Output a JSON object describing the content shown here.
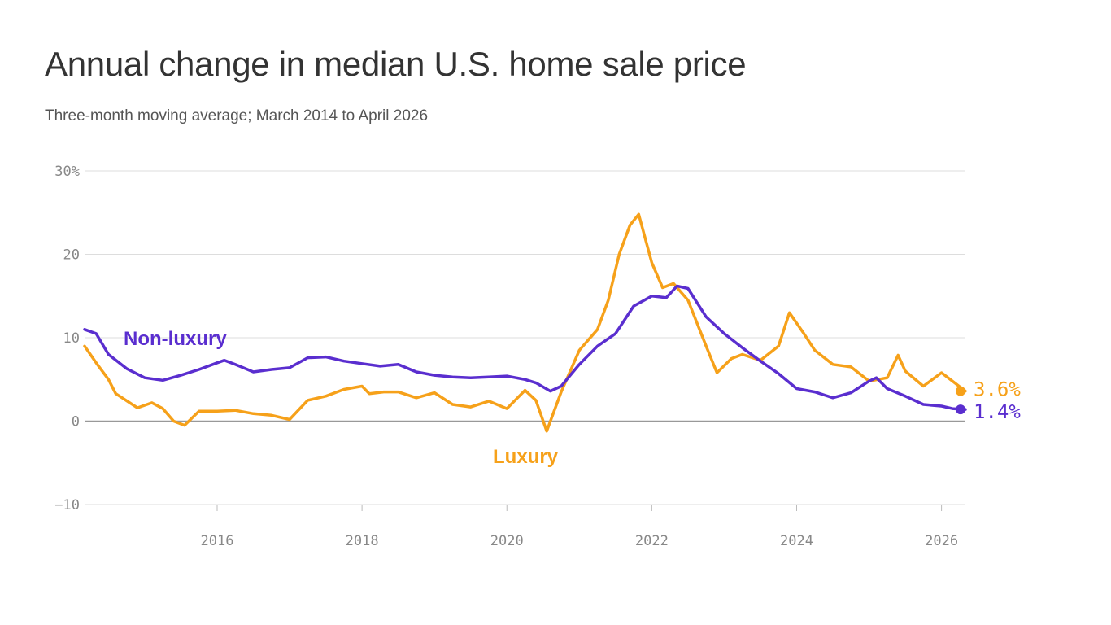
{
  "header": {
    "title": "Annual change in median U.S. home sale price",
    "subtitle": "Three-month moving average; March 2014 to April 2026"
  },
  "chart_data": {
    "type": "line",
    "title": "Annual change in median U.S. home sale price",
    "subtitle": "Three-month moving average; March 2014 to April 2026",
    "xlabel": "",
    "ylabel": "",
    "xlim": [
      2014.17,
      2026.33
    ],
    "ylim": [
      -10,
      30
    ],
    "x_ticks": [
      2016,
      2018,
      2020,
      2022,
      2024,
      2026
    ],
    "y_ticks": [
      30,
      20,
      10,
      0,
      -10
    ],
    "y_tick_labels": [
      "30%",
      "20",
      "10",
      "0",
      "−10"
    ],
    "grid": true,
    "series": [
      {
        "name": "Non-luxury",
        "color": "#5a2ecf",
        "end_label": "1.4%",
        "points": [
          [
            2014.17,
            11.0
          ],
          [
            2014.33,
            10.5
          ],
          [
            2014.5,
            8.0
          ],
          [
            2014.75,
            6.3
          ],
          [
            2015.0,
            5.2
          ],
          [
            2015.25,
            4.9
          ],
          [
            2015.5,
            5.5
          ],
          [
            2015.75,
            6.2
          ],
          [
            2016.0,
            7.0
          ],
          [
            2016.1,
            7.3
          ],
          [
            2016.25,
            6.8
          ],
          [
            2016.5,
            5.9
          ],
          [
            2016.75,
            6.2
          ],
          [
            2017.0,
            6.4
          ],
          [
            2017.25,
            7.6
          ],
          [
            2017.5,
            7.7
          ],
          [
            2017.75,
            7.2
          ],
          [
            2018.0,
            6.9
          ],
          [
            2018.25,
            6.6
          ],
          [
            2018.5,
            6.8
          ],
          [
            2018.75,
            5.9
          ],
          [
            2019.0,
            5.5
          ],
          [
            2019.25,
            5.3
          ],
          [
            2019.5,
            5.2
          ],
          [
            2019.75,
            5.3
          ],
          [
            2020.0,
            5.4
          ],
          [
            2020.25,
            5.0
          ],
          [
            2020.4,
            4.6
          ],
          [
            2020.6,
            3.6
          ],
          [
            2020.75,
            4.2
          ],
          [
            2021.0,
            6.8
          ],
          [
            2021.25,
            9.0
          ],
          [
            2021.5,
            10.5
          ],
          [
            2021.75,
            13.8
          ],
          [
            2022.0,
            15.0
          ],
          [
            2022.2,
            14.8
          ],
          [
            2022.35,
            16.2
          ],
          [
            2022.5,
            15.9
          ],
          [
            2022.75,
            12.5
          ],
          [
            2023.0,
            10.5
          ],
          [
            2023.25,
            8.8
          ],
          [
            2023.5,
            7.2
          ],
          [
            2023.75,
            5.7
          ],
          [
            2024.0,
            3.9
          ],
          [
            2024.25,
            3.5
          ],
          [
            2024.5,
            2.8
          ],
          [
            2024.75,
            3.4
          ],
          [
            2025.0,
            4.8
          ],
          [
            2025.1,
            5.2
          ],
          [
            2025.25,
            3.9
          ],
          [
            2025.5,
            3.0
          ],
          [
            2025.75,
            2.0
          ],
          [
            2026.0,
            1.8
          ],
          [
            2026.15,
            1.5
          ],
          [
            2026.33,
            1.4
          ]
        ]
      },
      {
        "name": "Luxury",
        "color": "#f6a11a",
        "end_label": "3.6%",
        "points": [
          [
            2014.17,
            9.0
          ],
          [
            2014.33,
            7.0
          ],
          [
            2014.5,
            5.0
          ],
          [
            2014.6,
            3.3
          ],
          [
            2014.9,
            1.6
          ],
          [
            2015.1,
            2.2
          ],
          [
            2015.25,
            1.5
          ],
          [
            2015.4,
            0.0
          ],
          [
            2015.55,
            -0.5
          ],
          [
            2015.75,
            1.2
          ],
          [
            2016.0,
            1.2
          ],
          [
            2016.25,
            1.3
          ],
          [
            2016.5,
            0.9
          ],
          [
            2016.75,
            0.7
          ],
          [
            2017.0,
            0.2
          ],
          [
            2017.25,
            2.5
          ],
          [
            2017.5,
            3.0
          ],
          [
            2017.75,
            3.8
          ],
          [
            2018.0,
            4.2
          ],
          [
            2018.1,
            3.3
          ],
          [
            2018.3,
            3.5
          ],
          [
            2018.5,
            3.5
          ],
          [
            2018.75,
            2.8
          ],
          [
            2019.0,
            3.4
          ],
          [
            2019.25,
            2.0
          ],
          [
            2019.5,
            1.7
          ],
          [
            2019.75,
            2.4
          ],
          [
            2020.0,
            1.5
          ],
          [
            2020.25,
            3.7
          ],
          [
            2020.4,
            2.5
          ],
          [
            2020.55,
            -1.2
          ],
          [
            2020.75,
            3.5
          ],
          [
            2021.0,
            8.5
          ],
          [
            2021.25,
            11.0
          ],
          [
            2021.4,
            14.5
          ],
          [
            2021.55,
            20.0
          ],
          [
            2021.7,
            23.5
          ],
          [
            2021.82,
            24.8
          ],
          [
            2022.0,
            19.0
          ],
          [
            2022.15,
            16.0
          ],
          [
            2022.3,
            16.5
          ],
          [
            2022.5,
            14.5
          ],
          [
            2022.75,
            9.0
          ],
          [
            2022.9,
            5.8
          ],
          [
            2023.1,
            7.5
          ],
          [
            2023.25,
            8.0
          ],
          [
            2023.5,
            7.3
          ],
          [
            2023.75,
            9.0
          ],
          [
            2023.9,
            13.0
          ],
          [
            2024.1,
            10.5
          ],
          [
            2024.25,
            8.5
          ],
          [
            2024.5,
            6.8
          ],
          [
            2024.75,
            6.5
          ],
          [
            2025.0,
            4.8
          ],
          [
            2025.25,
            5.2
          ],
          [
            2025.4,
            7.9
          ],
          [
            2025.5,
            6.0
          ],
          [
            2025.75,
            4.2
          ],
          [
            2026.0,
            5.8
          ],
          [
            2026.15,
            4.8
          ],
          [
            2026.33,
            3.6
          ]
        ]
      }
    ],
    "annotations": [
      {
        "text": "Non-luxury",
        "series": "Non-luxury"
      },
      {
        "text": "Luxury",
        "series": "Luxury"
      }
    ]
  }
}
